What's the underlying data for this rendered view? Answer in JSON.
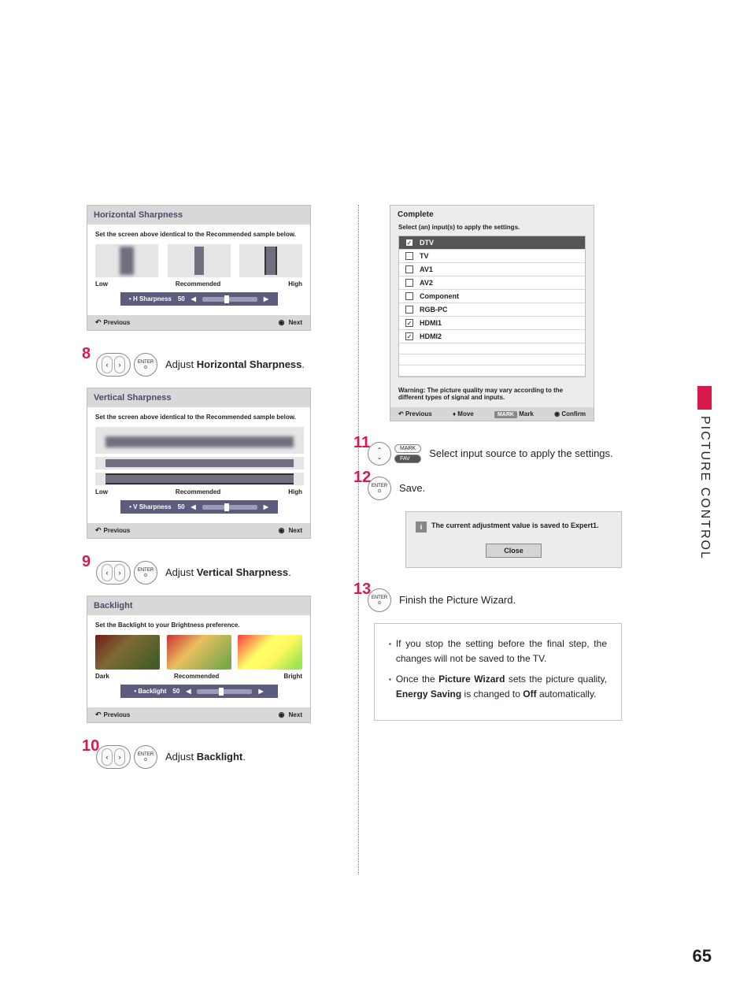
{
  "side_label": "PICTURE CONTROL",
  "page_number": "65",
  "panels": {
    "h_sharp": {
      "title": "Horizontal Sharpness",
      "instr": "Set the screen above identical to the Recommended sample below.",
      "labels": [
        "Low",
        "Recommended",
        "High"
      ],
      "slider_label": "• H Sharpness",
      "slider_value": "50",
      "prev": "Previous",
      "next": "Next"
    },
    "v_sharp": {
      "title": "Vertical Sharpness",
      "instr": "Set the screen above identical to the Recommended sample below.",
      "labels": [
        "Low",
        "Recommended",
        "High"
      ],
      "slider_label": "• V Sharpness",
      "slider_value": "50",
      "prev": "Previous",
      "next": "Next"
    },
    "backlight": {
      "title": "Backlight",
      "instr": "Set the Backlight to your Brightness preference.",
      "labels": [
        "Dark",
        "Recommended",
        "Bright"
      ],
      "slider_label": "• Backlight",
      "slider_value": "50",
      "prev": "Previous",
      "next": "Next"
    },
    "complete": {
      "title": "Complete",
      "sub": "Select (an) input(s) to apply the settings.",
      "inputs": [
        {
          "label": "DTV",
          "checked": true,
          "selected": true
        },
        {
          "label": "TV",
          "checked": false
        },
        {
          "label": "AV1",
          "checked": false
        },
        {
          "label": "AV2",
          "checked": false
        },
        {
          "label": "Component",
          "checked": false
        },
        {
          "label": "RGB-PC",
          "checked": false
        },
        {
          "label": "HDMI1",
          "checked": true
        },
        {
          "label": "HDMI2",
          "checked": true
        }
      ],
      "warn": "Warning: The picture quality may vary according to the different types of signal and inputs.",
      "foot": {
        "prev": "Previous",
        "move": "Move",
        "mark_btn": "MARK",
        "mark": "Mark",
        "confirm": "Confirm"
      }
    },
    "savebox": {
      "msg": "The current adjustment value is saved to Expert1.",
      "close": "Close"
    }
  },
  "steps": {
    "s8": {
      "num": "8",
      "text_pre": "Adjust ",
      "text_bold": "Horizontal Sharpness",
      "text_post": "."
    },
    "s9": {
      "num": "9",
      "text_pre": "Adjust ",
      "text_bold": "Vertical Sharpness",
      "text_post": "."
    },
    "s10": {
      "num": "10",
      "text_pre": "Adjust ",
      "text_bold": "Backlight",
      "text_post": "."
    },
    "s11": {
      "num": "11",
      "text": "Select input source to apply the settings.",
      "mark": "MARK",
      "fav": "FAV"
    },
    "s12": {
      "num": "12",
      "text": "Save."
    },
    "s13": {
      "num": "13",
      "text": "Finish the Picture Wizard."
    }
  },
  "enter_label": "ENTER",
  "notes": {
    "n1": "If you stop the setting before the final step, the changes will not be saved to the TV.",
    "n2_a": "Once the ",
    "n2_b": "Picture Wizard",
    "n2_c": " sets the picture quality, ",
    "n2_d": "Energy Saving",
    "n2_e": " is changed to ",
    "n2_f": "Off",
    "n2_g": " automatically."
  },
  "colors": {
    "accent": "#d9194b",
    "panel_header": "#d8d8d8",
    "slider_bg": "#5c5c7e"
  }
}
